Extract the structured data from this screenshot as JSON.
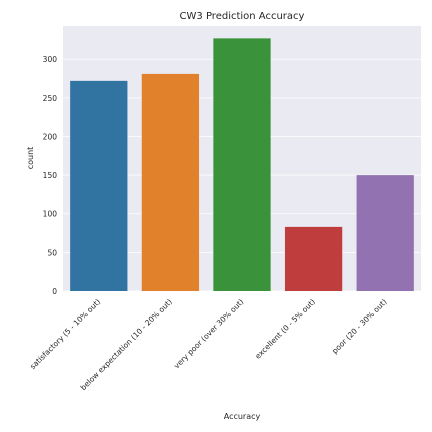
{
  "chart_data": {
    "type": "bar",
    "title": "CW3 Prediction Accuracy",
    "xlabel": "Accuracy",
    "ylabel": "count",
    "categories": [
      "satisfactory (5 - 10% out)",
      "below expectation (10 - 20% out)",
      "very poor (over 30% out)",
      "excellent (0 - 5% out)",
      "poor (20 - 30% out)"
    ],
    "values": [
      272,
      281,
      327,
      83,
      150
    ],
    "colors": [
      "#3274a1",
      "#e1812c",
      "#3a923a",
      "#c03d3e",
      "#9372b2"
    ],
    "yticks": [
      0,
      50,
      100,
      150,
      200,
      250,
      300
    ],
    "ylim": [
      0,
      343
    ],
    "grid": true,
    "background": "#eaeaf2",
    "legend": "none"
  }
}
